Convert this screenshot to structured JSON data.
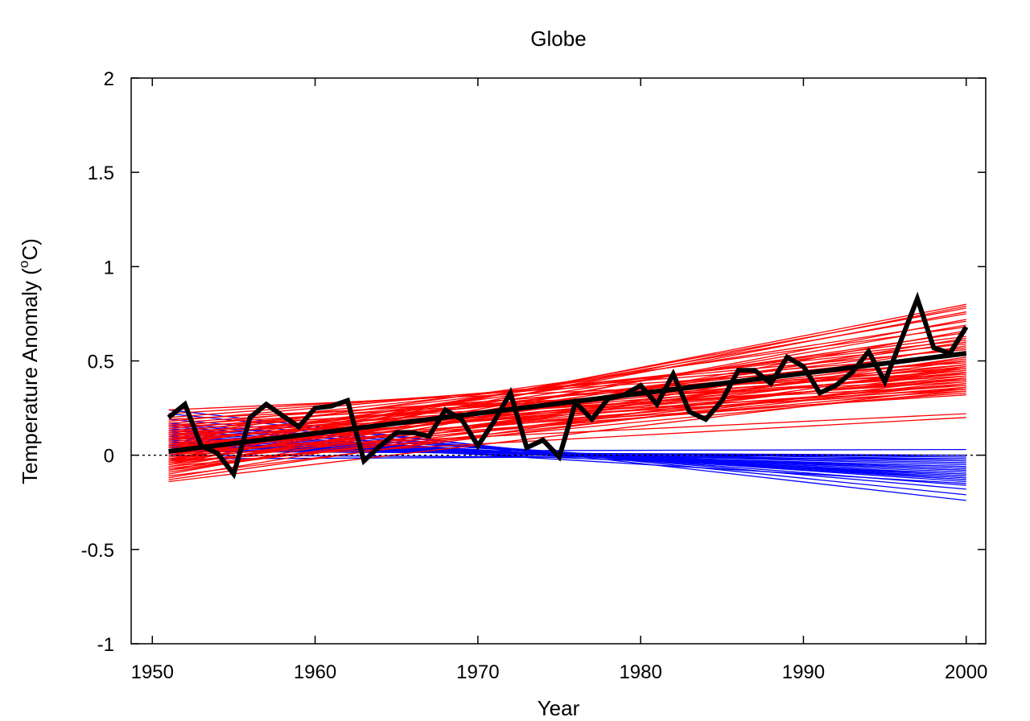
{
  "chart_data": {
    "type": "line",
    "title": "Globe",
    "xlabel": "Year",
    "ylabel": {
      "prefix": "Temperature Anomaly (",
      "superscript": "o",
      "suffix": "C)"
    },
    "xlim": [
      1948.7,
      2001.2
    ],
    "ylim": [
      -1,
      2
    ],
    "x_ticks": [
      1950,
      1960,
      1970,
      1980,
      1990,
      2000
    ],
    "y_ticks": [
      -1,
      -0.5,
      0,
      0.5,
      1,
      1.5,
      2
    ],
    "y_tick_labels": [
      "-1",
      "-0.5",
      "0",
      "0.5",
      "1",
      "1.5",
      "2"
    ],
    "grid": false,
    "zero_line": {
      "y": 0,
      "style": "dotted",
      "color": "#000000"
    },
    "colors": {
      "warming_trends": "#ff0000",
      "cooling_trends": "#0000ff",
      "observed": "#000000"
    },
    "trend_range": [
      1951,
      2000
    ],
    "warming_trends": {
      "color": "#ff0000",
      "lines": [
        [
          -0.02,
          0.8
        ],
        [
          -0.05,
          0.79
        ],
        [
          0.0,
          0.78
        ],
        [
          -0.03,
          0.76
        ],
        [
          0.02,
          0.75
        ],
        [
          -0.08,
          0.72
        ],
        [
          0.05,
          0.71
        ],
        [
          -0.04,
          0.69
        ],
        [
          0.1,
          0.68
        ],
        [
          -0.1,
          0.66
        ],
        [
          0.03,
          0.65
        ],
        [
          0.08,
          0.63
        ],
        [
          -0.06,
          0.62
        ],
        [
          0.12,
          0.61
        ],
        [
          0.0,
          0.6
        ],
        [
          0.15,
          0.59
        ],
        [
          -0.12,
          0.58
        ],
        [
          0.06,
          0.57
        ],
        [
          0.18,
          0.56
        ],
        [
          -0.02,
          0.55
        ],
        [
          0.09,
          0.54
        ],
        [
          0.2,
          0.53
        ],
        [
          -0.09,
          0.52
        ],
        [
          0.04,
          0.51
        ],
        [
          0.14,
          0.5
        ],
        [
          -0.05,
          0.5
        ],
        [
          0.22,
          0.49
        ],
        [
          0.01,
          0.48
        ],
        [
          0.11,
          0.48
        ],
        [
          -0.13,
          0.47
        ],
        [
          0.07,
          0.47
        ],
        [
          0.17,
          0.46
        ],
        [
          -0.03,
          0.46
        ],
        [
          0.02,
          0.45
        ],
        [
          0.13,
          0.45
        ],
        [
          -0.08,
          0.44
        ],
        [
          0.05,
          0.44
        ],
        [
          0.24,
          0.43
        ],
        [
          0.1,
          0.43
        ],
        [
          -0.01,
          0.42
        ],
        [
          0.16,
          0.42
        ],
        [
          -0.11,
          0.41
        ],
        [
          0.04,
          0.41
        ],
        [
          0.19,
          0.4
        ],
        [
          0.08,
          0.4
        ],
        [
          -0.04,
          0.39
        ],
        [
          0.12,
          0.39
        ],
        [
          0.0,
          0.38
        ],
        [
          -0.07,
          0.38
        ],
        [
          0.15,
          0.37
        ],
        [
          0.06,
          0.37
        ],
        [
          -0.14,
          0.36
        ],
        [
          0.03,
          0.36
        ],
        [
          0.11,
          0.35
        ],
        [
          -0.02,
          0.35
        ],
        [
          0.09,
          0.34
        ],
        [
          -0.06,
          0.34
        ],
        [
          0.01,
          0.33
        ],
        [
          0.05,
          0.32
        ],
        [
          0.02,
          0.22
        ],
        [
          -0.03,
          0.2
        ]
      ]
    },
    "cooling_trends": {
      "color": "#0000ff",
      "lines": [
        [
          0.24,
          -0.24
        ],
        [
          0.22,
          -0.21
        ],
        [
          0.19,
          -0.18
        ],
        [
          0.17,
          -0.16
        ],
        [
          0.15,
          -0.14
        ],
        [
          0.13,
          -0.13
        ],
        [
          0.12,
          -0.12
        ],
        [
          0.11,
          -0.11
        ],
        [
          0.1,
          -0.1
        ],
        [
          0.09,
          -0.09
        ],
        [
          0.08,
          -0.08
        ],
        [
          0.07,
          -0.07
        ],
        [
          0.06,
          -0.06
        ],
        [
          0.06,
          -0.05
        ],
        [
          0.05,
          -0.04
        ],
        [
          0.04,
          -0.03
        ],
        [
          0.04,
          -0.02
        ],
        [
          0.03,
          -0.01
        ],
        [
          0.02,
          0.0
        ],
        [
          0.02,
          0.03
        ],
        [
          0.1,
          -0.15
        ],
        [
          0.14,
          -0.12
        ],
        [
          0.07,
          -0.1
        ],
        [
          0.0,
          -0.02
        ],
        [
          -0.02,
          0.0
        ],
        [
          0.05,
          -0.06
        ],
        [
          0.09,
          -0.08
        ],
        [
          0.16,
          -0.13
        ]
      ]
    },
    "observed_trend": {
      "color": "#000000",
      "points": [
        [
          1951,
          0.02
        ],
        [
          2000,
          0.54
        ]
      ]
    },
    "observed": {
      "color": "#000000",
      "x": [
        1951,
        1952,
        1953,
        1954,
        1955,
        1956,
        1957,
        1958,
        1959,
        1960,
        1961,
        1962,
        1963,
        1964,
        1965,
        1966,
        1967,
        1968,
        1969,
        1970,
        1971,
        1972,
        1973,
        1974,
        1975,
        1976,
        1977,
        1978,
        1979,
        1980,
        1981,
        1982,
        1983,
        1984,
        1985,
        1986,
        1987,
        1988,
        1989,
        1990,
        1991,
        1992,
        1993,
        1994,
        1995,
        1996,
        1997,
        1998,
        1999,
        2000
      ],
      "y": [
        0.2,
        0.27,
        0.05,
        0.01,
        -0.1,
        0.2,
        0.27,
        0.21,
        0.15,
        0.25,
        0.26,
        0.29,
        -0.03,
        0.05,
        0.12,
        0.12,
        0.1,
        0.24,
        0.19,
        0.05,
        0.18,
        0.33,
        0.04,
        0.08,
        -0.01,
        0.28,
        0.19,
        0.3,
        0.32,
        0.37,
        0.27,
        0.43,
        0.23,
        0.19,
        0.29,
        0.45,
        0.45,
        0.38,
        0.52,
        0.47,
        0.33,
        0.37,
        0.44,
        0.55,
        0.39,
        0.61,
        0.83,
        0.57,
        0.54,
        0.68
      ]
    }
  }
}
